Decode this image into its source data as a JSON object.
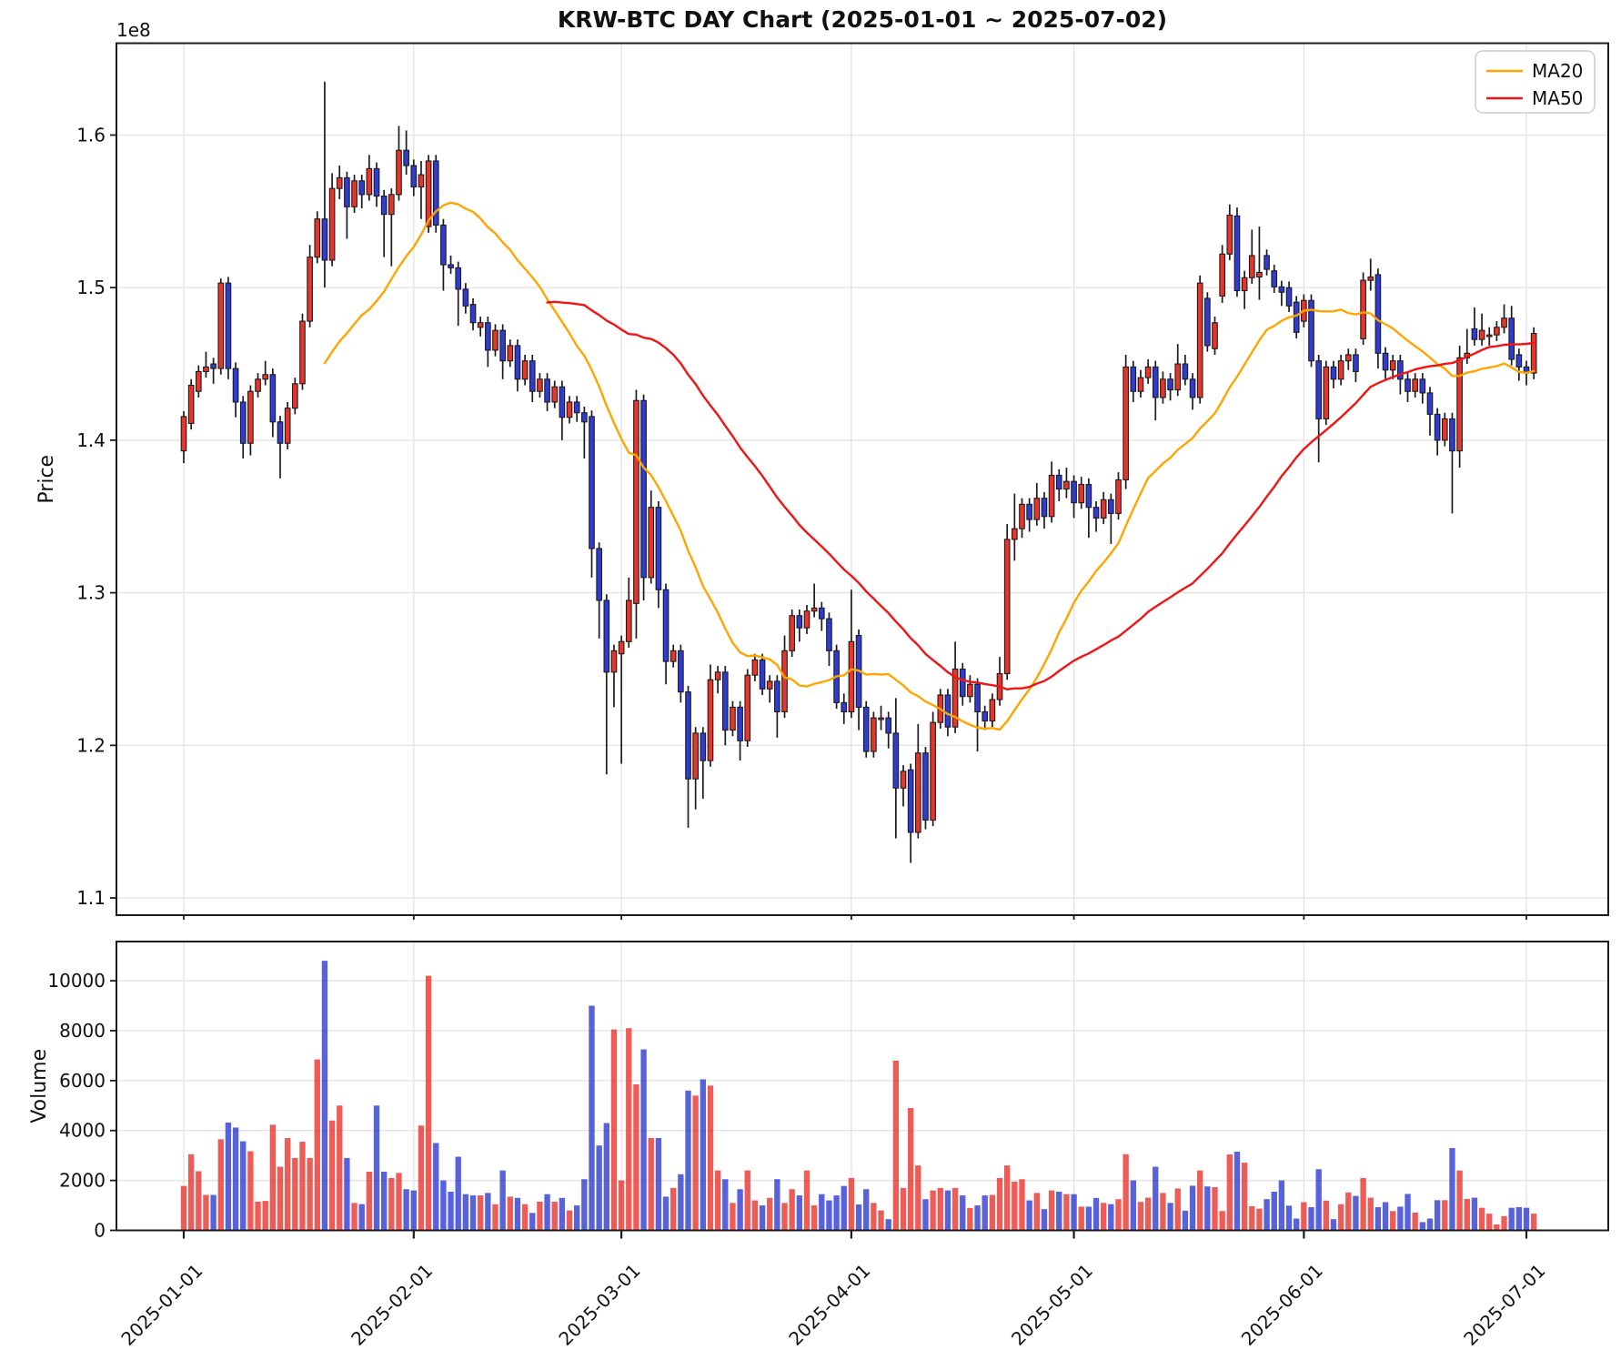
{
  "title": "KRW-BTC DAY Chart (2025-01-01 ~ 2025-07-02)",
  "chart_data": {
    "type": "candlestick",
    "title": "KRW-BTC DAY Chart (2025-01-01 ~ 2025-07-02)",
    "pair": "KRW-BTC",
    "interval": "DAY",
    "start_date": "2025-01-01",
    "end_date": "2025-07-02",
    "x_tick_labels": [
      "2025-01-01",
      "2025-02-01",
      "2025-03-01",
      "2025-04-01",
      "2025-05-01",
      "2025-06-01",
      "2025-07-01"
    ],
    "x_tick_indices": [
      0,
      31,
      59,
      90,
      120,
      151,
      181
    ],
    "price_axis": {
      "label": "Price",
      "offset_text": "1e8",
      "unit_multiplier": 100000000,
      "ylim": [
        1.0887,
        1.6602
      ],
      "yticks": [
        "1.1",
        "1.2",
        "1.3",
        "1.4",
        "1.5",
        "1.6"
      ],
      "grid": true
    },
    "volume_axis": {
      "label": "Volume",
      "ylim": [
        0,
        11570
      ],
      "yticks": [
        "0",
        "2000",
        "4000",
        "6000",
        "8000",
        "10000"
      ],
      "grid": true
    },
    "legend": {
      "position": "upper-right",
      "entries": [
        {
          "label": "MA20",
          "window": 20,
          "color": "#ffa500"
        },
        {
          "label": "MA50",
          "window": 50,
          "color": "#f01414"
        }
      ]
    },
    "colors": {
      "up": "#e9342c",
      "down": "#2f3bd3",
      "wick": "#1c1c1c",
      "grid": "#e4e4e4",
      "spine": "#1c1c1c",
      "volume_opacity": 0.8
    },
    "candles_format": [
      "open",
      "high",
      "low",
      "close",
      "volume"
    ],
    "candles": [
      [
        1.393,
        1.419,
        1.385,
        1.4155,
        1780
      ],
      [
        1.411,
        1.44,
        1.407,
        1.436,
        3050
      ],
      [
        1.432,
        1.449,
        1.428,
        1.445,
        2370
      ],
      [
        1.445,
        1.458,
        1.441,
        1.448,
        1420
      ],
      [
        1.45,
        1.454,
        1.437,
        1.447,
        1420
      ],
      [
        1.447,
        1.506,
        1.443,
        1.503,
        3650
      ],
      [
        1.503,
        1.507,
        1.44,
        1.447,
        4320
      ],
      [
        1.447,
        1.451,
        1.415,
        1.425,
        4120
      ],
      [
        1.425,
        1.429,
        1.388,
        1.398,
        3570
      ],
      [
        1.398,
        1.436,
        1.39,
        1.432,
        3170
      ],
      [
        1.432,
        1.444,
        1.428,
        1.44,
        1150
      ],
      [
        1.44,
        1.452,
        1.436,
        1.443,
        1180
      ],
      [
        1.443,
        1.447,
        1.402,
        1.412,
        4230
      ],
      [
        1.412,
        1.416,
        1.375,
        1.398,
        2550
      ],
      [
        1.398,
        1.425,
        1.394,
        1.421,
        3700
      ],
      [
        1.421,
        1.441,
        1.417,
        1.437,
        2900
      ],
      [
        1.437,
        1.483,
        1.433,
        1.478,
        3550
      ],
      [
        1.478,
        1.528,
        1.474,
        1.52,
        2900
      ],
      [
        1.52,
        1.55,
        1.516,
        1.545,
        6850
      ],
      [
        1.545,
        1.635,
        1.5,
        1.518,
        10800
      ],
      [
        1.518,
        1.575,
        1.514,
        1.565,
        4400
      ],
      [
        1.565,
        1.58,
        1.558,
        1.572,
        5000
      ],
      [
        1.572,
        1.576,
        1.532,
        1.553,
        2900
      ],
      [
        1.553,
        1.574,
        1.549,
        1.57,
        1100
      ],
      [
        1.57,
        1.574,
        1.552,
        1.561,
        1050
      ],
      [
        1.561,
        1.587,
        1.557,
        1.578,
        2350
      ],
      [
        1.578,
        1.582,
        1.553,
        1.56,
        5000
      ],
      [
        1.56,
        1.564,
        1.52,
        1.548,
        2350
      ],
      [
        1.548,
        1.565,
        1.514,
        1.561,
        2100
      ],
      [
        1.561,
        1.606,
        1.557,
        1.59,
        2300
      ],
      [
        1.59,
        1.603,
        1.574,
        1.58,
        1650
      ],
      [
        1.58,
        1.584,
        1.56,
        1.566,
        1600
      ],
      [
        1.566,
        1.583,
        1.545,
        1.574,
        4200
      ],
      [
        1.54,
        1.587,
        1.536,
        1.583,
        10200
      ],
      [
        1.583,
        1.587,
        1.536,
        1.541,
        3500
      ],
      [
        1.541,
        1.545,
        1.498,
        1.515,
        2000
      ],
      [
        1.515,
        1.521,
        1.509,
        1.513,
        1550
      ],
      [
        1.513,
        1.517,
        1.475,
        1.499,
        2950
      ],
      [
        1.499,
        1.503,
        1.483,
        1.488,
        1450
      ],
      [
        1.489,
        1.493,
        1.472,
        1.477,
        1400
      ],
      [
        1.474,
        1.481,
        1.468,
        1.477,
        1400
      ],
      [
        1.477,
        1.481,
        1.448,
        1.459,
        1500
      ],
      [
        1.459,
        1.476,
        1.455,
        1.472,
        1050
      ],
      [
        1.472,
        1.476,
        1.44,
        1.452,
        2400
      ],
      [
        1.452,
        1.466,
        1.448,
        1.462,
        1350
      ],
      [
        1.462,
        1.466,
        1.432,
        1.44,
        1300
      ],
      [
        1.44,
        1.456,
        1.436,
        1.452,
        1050
      ],
      [
        1.452,
        1.456,
        1.425,
        1.432,
        700
      ],
      [
        1.432,
        1.444,
        1.428,
        1.44,
        1150
      ],
      [
        1.44,
        1.444,
        1.419,
        1.425,
        1450
      ],
      [
        1.425,
        1.439,
        1.421,
        1.435,
        1150
      ],
      [
        1.435,
        1.439,
        1.4,
        1.415,
        1300
      ],
      [
        1.415,
        1.429,
        1.411,
        1.425,
        800
      ],
      [
        1.425,
        1.429,
        1.412,
        1.418,
        1000
      ],
      [
        1.418,
        1.422,
        1.388,
        1.412,
        2050
      ],
      [
        1.4155,
        1.4195,
        1.31,
        1.329,
        9000
      ],
      [
        1.329,
        1.333,
        1.27,
        1.295,
        3400
      ],
      [
        1.295,
        1.299,
        1.181,
        1.248,
        4300
      ],
      [
        1.248,
        1.266,
        1.225,
        1.262,
        8050
      ],
      [
        1.26,
        1.272,
        1.188,
        1.268,
        2000
      ],
      [
        1.268,
        1.31,
        1.264,
        1.295,
        8100
      ],
      [
        1.293,
        1.433,
        1.27,
        1.426,
        5850
      ],
      [
        1.426,
        1.43,
        1.295,
        1.31,
        7250
      ],
      [
        1.31,
        1.367,
        1.306,
        1.356,
        3700
      ],
      [
        1.356,
        1.36,
        1.29,
        1.302,
        3700
      ],
      [
        1.302,
        1.306,
        1.24,
        1.255,
        1350
      ],
      [
        1.255,
        1.266,
        1.251,
        1.262,
        1700
      ],
      [
        1.262,
        1.266,
        1.228,
        1.235,
        2250
      ],
      [
        1.235,
        1.239,
        1.146,
        1.178,
        5600
      ],
      [
        1.178,
        1.212,
        1.158,
        1.208,
        5400
      ],
      [
        1.208,
        1.212,
        1.165,
        1.19,
        6050
      ],
      [
        1.19,
        1.253,
        1.186,
        1.243,
        5800
      ],
      [
        1.243,
        1.252,
        1.234,
        1.248,
        2400
      ],
      [
        1.248,
        1.252,
        1.2,
        1.21,
        2050
      ],
      [
        1.21,
        1.229,
        1.206,
        1.225,
        1100
      ],
      [
        1.225,
        1.229,
        1.19,
        1.203,
        1650
      ],
      [
        1.203,
        1.25,
        1.199,
        1.246,
        2400
      ],
      [
        1.246,
        1.26,
        1.242,
        1.256,
        1200
      ],
      [
        1.256,
        1.26,
        1.233,
        1.237,
        1000
      ],
      [
        1.237,
        1.246,
        1.228,
        1.242,
        1300
      ],
      [
        1.242,
        1.246,
        1.205,
        1.222,
        2050
      ],
      [
        1.222,
        1.272,
        1.218,
        1.262,
        1100
      ],
      [
        1.262,
        1.289,
        1.258,
        1.285,
        1650
      ],
      [
        1.285,
        1.289,
        1.268,
        1.277,
        1400
      ],
      [
        1.277,
        1.292,
        1.273,
        1.288,
        2400
      ],
      [
        1.288,
        1.306,
        1.284,
        1.29,
        1000
      ],
      [
        1.29,
        1.294,
        1.275,
        1.283,
        1450
      ],
      [
        1.283,
        1.287,
        1.252,
        1.262,
        1200
      ],
      [
        1.262,
        1.266,
        1.224,
        1.228,
        1400
      ],
      [
        1.228,
        1.234,
        1.214,
        1.222,
        1780
      ],
      [
        1.222,
        1.302,
        1.218,
        1.268,
        2100
      ],
      [
        1.272,
        1.276,
        1.21,
        1.225,
        1040
      ],
      [
        1.225,
        1.229,
        1.192,
        1.196,
        1650
      ],
      [
        1.196,
        1.222,
        1.192,
        1.218,
        1100
      ],
      [
        1.218,
        1.226,
        1.21,
        1.218,
        800
      ],
      [
        1.218,
        1.222,
        1.198,
        1.208,
        450
      ],
      [
        1.208,
        1.231,
        1.139,
        1.172,
        6800
      ],
      [
        1.172,
        1.187,
        1.16,
        1.183,
        1700
      ],
      [
        1.184,
        1.188,
        1.123,
        1.143,
        4900
      ],
      [
        1.143,
        1.214,
        1.139,
        1.195,
        2600
      ],
      [
        1.195,
        1.199,
        1.145,
        1.151,
        1250
      ],
      [
        1.151,
        1.222,
        1.147,
        1.215,
        1600
      ],
      [
        1.215,
        1.237,
        1.211,
        1.233,
        1700
      ],
      [
        1.233,
        1.237,
        1.206,
        1.212,
        1600
      ],
      [
        1.212,
        1.268,
        1.208,
        1.25,
        1700
      ],
      [
        1.25,
        1.254,
        1.226,
        1.232,
        1400
      ],
      [
        1.232,
        1.246,
        1.228,
        1.24,
        900
      ],
      [
        1.24,
        1.244,
        1.196,
        1.222,
        1000
      ],
      [
        1.222,
        1.226,
        1.21,
        1.216,
        1400
      ],
      [
        1.216,
        1.234,
        1.212,
        1.23,
        1420
      ],
      [
        1.23,
        1.258,
        1.226,
        1.247,
        2100
      ],
      [
        1.247,
        1.345,
        1.243,
        1.335,
        2600
      ],
      [
        1.335,
        1.365,
        1.321,
        1.342,
        1950
      ],
      [
        1.342,
        1.362,
        1.336,
        1.358,
        2050
      ],
      [
        1.358,
        1.362,
        1.34,
        1.348,
        1200
      ],
      [
        1.348,
        1.372,
        1.344,
        1.362,
        1500
      ],
      [
        1.362,
        1.366,
        1.342,
        1.35,
        850
      ],
      [
        1.35,
        1.386,
        1.346,
        1.377,
        1600
      ],
      [
        1.377,
        1.381,
        1.36,
        1.368,
        1550
      ],
      [
        1.368,
        1.382,
        1.362,
        1.373,
        1450
      ],
      [
        1.373,
        1.377,
        1.349,
        1.359,
        1450
      ],
      [
        1.359,
        1.376,
        1.355,
        1.371,
        950
      ],
      [
        1.371,
        1.375,
        1.336,
        1.356,
        950
      ],
      [
        1.356,
        1.36,
        1.34,
        1.349,
        1300
      ],
      [
        1.349,
        1.366,
        1.345,
        1.361,
        1100
      ],
      [
        1.361,
        1.365,
        1.332,
        1.352,
        1050
      ],
      [
        1.352,
        1.379,
        1.348,
        1.374,
        1250
      ],
      [
        1.374,
        1.456,
        1.368,
        1.448,
        3050
      ],
      [
        1.448,
        1.452,
        1.425,
        1.432,
        2000
      ],
      [
        1.432,
        1.446,
        1.428,
        1.441,
        1140
      ],
      [
        1.441,
        1.453,
        1.437,
        1.448,
        1310
      ],
      [
        1.448,
        1.452,
        1.413,
        1.428,
        2550
      ],
      [
        1.428,
        1.445,
        1.424,
        1.44,
        1500
      ],
      [
        1.44,
        1.444,
        1.426,
        1.433,
        1100
      ],
      [
        1.433,
        1.463,
        1.429,
        1.45,
        1680
      ],
      [
        1.45,
        1.456,
        1.436,
        1.44,
        790
      ],
      [
        1.44,
        1.444,
        1.42,
        1.428,
        1790
      ],
      [
        1.428,
        1.508,
        1.424,
        1.503,
        2400
      ],
      [
        1.493,
        1.497,
        1.458,
        1.462,
        1760
      ],
      [
        1.46,
        1.481,
        1.456,
        1.477,
        1730
      ],
      [
        1.4945,
        1.528,
        1.49,
        1.522,
        775
      ],
      [
        1.522,
        1.5545,
        1.518,
        1.5475,
        3040
      ],
      [
        1.547,
        1.5525,
        1.494,
        1.498,
        3150
      ],
      [
        1.498,
        1.511,
        1.486,
        1.5065,
        2710
      ],
      [
        1.5065,
        1.538,
        1.5025,
        1.521,
        965
      ],
      [
        1.507,
        1.54,
        1.492,
        1.51,
        870
      ],
      [
        1.521,
        1.525,
        1.508,
        1.512,
        1250
      ],
      [
        1.511,
        1.515,
        1.4965,
        1.5005,
        1550
      ],
      [
        1.5005,
        1.5045,
        1.488,
        1.497,
        2000
      ],
      [
        1.5,
        1.504,
        1.484,
        1.488,
        990
      ],
      [
        1.4905,
        1.4945,
        1.4667,
        1.4707,
        475
      ],
      [
        1.478,
        1.4956,
        1.474,
        1.4916,
        1130
      ],
      [
        1.4916,
        1.4956,
        1.448,
        1.452,
        930
      ],
      [
        1.452,
        1.456,
        1.3855,
        1.414,
        2450
      ],
      [
        1.414,
        1.452,
        1.41,
        1.448,
        1190
      ],
      [
        1.448,
        1.452,
        1.434,
        1.44,
        450
      ],
      [
        1.44,
        1.456,
        1.436,
        1.452,
        1050
      ],
      [
        1.452,
        1.46,
        1.446,
        1.456,
        1520
      ],
      [
        1.456,
        1.46,
        1.438,
        1.445,
        1380
      ],
      [
        1.4665,
        1.51,
        1.4625,
        1.5048,
        2100
      ],
      [
        1.5048,
        1.519,
        1.498,
        1.507,
        1310
      ],
      [
        1.5085,
        1.5125,
        1.447,
        1.457,
        930
      ],
      [
        1.457,
        1.461,
        1.44,
        1.446,
        1130
      ],
      [
        1.446,
        1.456,
        1.44,
        1.452,
        775
      ],
      [
        1.452,
        1.456,
        1.43,
        1.44,
        950
      ],
      [
        1.44,
        1.444,
        1.425,
        1.432,
        1460
      ],
      [
        1.432,
        1.444,
        1.428,
        1.44,
        715
      ],
      [
        1.44,
        1.444,
        1.424,
        1.431,
        330
      ],
      [
        1.431,
        1.435,
        1.403,
        1.417,
        475
      ],
      [
        1.417,
        1.421,
        1.39,
        1.4,
        1210
      ],
      [
        1.4,
        1.418,
        1.396,
        1.414,
        1210
      ],
      [
        1.414,
        1.418,
        1.352,
        1.393,
        3300
      ],
      [
        1.393,
        1.462,
        1.382,
        1.454,
        2400
      ],
      [
        1.454,
        1.473,
        1.45,
        1.457,
        1260
      ],
      [
        1.473,
        1.487,
        1.462,
        1.466,
        1310
      ],
      [
        1.466,
        1.483,
        1.462,
        1.472,
        905
      ],
      [
        1.468,
        1.474,
        1.462,
        1.469,
        667
      ],
      [
        1.469,
        1.478,
        1.465,
        1.474,
        238
      ],
      [
        1.474,
        1.489,
        1.47,
        1.48,
        570
      ],
      [
        1.48,
        1.488,
        1.449,
        1.453,
        905
      ],
      [
        1.456,
        1.46,
        1.439,
        1.448,
        930
      ],
      [
        1.448,
        1.452,
        1.436,
        1.444,
        905
      ],
      [
        1.444,
        1.474,
        1.44,
        1.47,
        670
      ]
    ],
    "volume_color_overrides": {
      "12": "up",
      "13": "up",
      "96": "up",
      "98": "up"
    }
  }
}
